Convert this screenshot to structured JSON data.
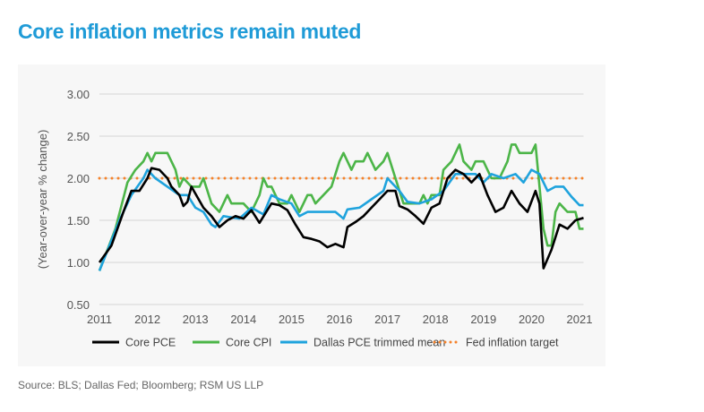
{
  "title": "Core inflation metrics remain muted",
  "source": "Source: BLS; Dallas Fed; Bloomberg; RSM US LLP",
  "chart_data": {
    "type": "line",
    "title": "Core inflation metrics remain muted",
    "ylabel": "(Year-over-year % change)",
    "xlabel": "",
    "ylim": [
      0.5,
      3.0
    ],
    "xlim": [
      "2011-01",
      "2021-02"
    ],
    "yticks": [
      "0.50",
      "1.00",
      "1.50",
      "2.00",
      "2.50",
      "3.00"
    ],
    "xticks": [
      "2011",
      "2012",
      "2013",
      "2014",
      "2015",
      "2016",
      "2017",
      "2018",
      "2019",
      "2020",
      "2021"
    ],
    "grid": "horizontal",
    "legend_placement": "bottom",
    "series": [
      {
        "name": "Core PCE",
        "color": "#000000",
        "style": "solid",
        "points": [
          [
            "2011-01",
            1.0
          ],
          [
            "2011-04",
            1.2
          ],
          [
            "2011-07",
            1.6
          ],
          [
            "2011-09",
            1.85
          ],
          [
            "2011-11",
            1.85
          ],
          [
            "2012-01",
            2.0
          ],
          [
            "2012-02",
            2.12
          ],
          [
            "2012-04",
            2.1
          ],
          [
            "2012-06",
            2.0
          ],
          [
            "2012-07",
            1.9
          ],
          [
            "2012-09",
            1.8
          ],
          [
            "2012-10",
            1.67
          ],
          [
            "2012-11",
            1.72
          ],
          [
            "2012-12",
            1.9
          ],
          [
            "2013-03",
            1.65
          ],
          [
            "2013-05",
            1.55
          ],
          [
            "2013-07",
            1.42
          ],
          [
            "2013-09",
            1.5
          ],
          [
            "2013-11",
            1.55
          ],
          [
            "2014-01",
            1.52
          ],
          [
            "2014-03",
            1.62
          ],
          [
            "2014-05",
            1.47
          ],
          [
            "2014-08",
            1.7
          ],
          [
            "2014-10",
            1.68
          ],
          [
            "2014-12",
            1.62
          ],
          [
            "2015-02",
            1.45
          ],
          [
            "2015-04",
            1.3
          ],
          [
            "2015-06",
            1.28
          ],
          [
            "2015-08",
            1.25
          ],
          [
            "2015-10",
            1.18
          ],
          [
            "2015-12",
            1.22
          ],
          [
            "2016-02",
            1.18
          ],
          [
            "2016-03",
            1.42
          ],
          [
            "2016-05",
            1.48
          ],
          [
            "2016-07",
            1.55
          ],
          [
            "2016-09",
            1.65
          ],
          [
            "2016-11",
            1.75
          ],
          [
            "2017-01",
            1.85
          ],
          [
            "2017-03",
            1.85
          ],
          [
            "2017-04",
            1.67
          ],
          [
            "2017-06",
            1.63
          ],
          [
            "2017-08",
            1.55
          ],
          [
            "2017-10",
            1.46
          ],
          [
            "2017-12",
            1.65
          ],
          [
            "2018-02",
            1.7
          ],
          [
            "2018-04",
            2.0
          ],
          [
            "2018-06",
            2.1
          ],
          [
            "2018-08",
            2.05
          ],
          [
            "2018-10",
            1.95
          ],
          [
            "2018-12",
            2.05
          ],
          [
            "2019-02",
            1.8
          ],
          [
            "2019-04",
            1.6
          ],
          [
            "2019-06",
            1.65
          ],
          [
            "2019-08",
            1.85
          ],
          [
            "2019-10",
            1.7
          ],
          [
            "2019-12",
            1.6
          ],
          [
            "2020-02",
            1.85
          ],
          [
            "2020-03",
            1.7
          ],
          [
            "2020-04",
            0.93
          ],
          [
            "2020-06",
            1.15
          ],
          [
            "2020-08",
            1.45
          ],
          [
            "2020-10",
            1.4
          ],
          [
            "2020-12",
            1.5
          ],
          [
            "2021-02",
            1.53
          ]
        ]
      },
      {
        "name": "Core CPI",
        "color": "#4cb548",
        "style": "solid",
        "points": [
          [
            "2011-01",
            0.9
          ],
          [
            "2011-05",
            1.4
          ],
          [
            "2011-08",
            1.95
          ],
          [
            "2011-10",
            2.1
          ],
          [
            "2011-12",
            2.2
          ],
          [
            "2012-01",
            2.3
          ],
          [
            "2012-02",
            2.2
          ],
          [
            "2012-03",
            2.3
          ],
          [
            "2012-06",
            2.3
          ],
          [
            "2012-08",
            2.1
          ],
          [
            "2012-09",
            1.9
          ],
          [
            "2012-10",
            2.0
          ],
          [
            "2012-12",
            1.9
          ],
          [
            "2013-02",
            1.9
          ],
          [
            "2013-03",
            2.0
          ],
          [
            "2013-05",
            1.7
          ],
          [
            "2013-07",
            1.6
          ],
          [
            "2013-09",
            1.8
          ],
          [
            "2013-10",
            1.7
          ],
          [
            "2014-01",
            1.7
          ],
          [
            "2014-03",
            1.6
          ],
          [
            "2014-05",
            1.8
          ],
          [
            "2014-06",
            2.0
          ],
          [
            "2014-07",
            1.9
          ],
          [
            "2014-08",
            1.9
          ],
          [
            "2014-10",
            1.7
          ],
          [
            "2014-12",
            1.7
          ],
          [
            "2015-01",
            1.8
          ],
          [
            "2015-03",
            1.6
          ],
          [
            "2015-05",
            1.8
          ],
          [
            "2015-06",
            1.8
          ],
          [
            "2015-07",
            1.7
          ],
          [
            "2015-09",
            1.8
          ],
          [
            "2015-11",
            1.9
          ],
          [
            "2016-01",
            2.2
          ],
          [
            "2016-02",
            2.3
          ],
          [
            "2016-04",
            2.1
          ],
          [
            "2016-05",
            2.2
          ],
          [
            "2016-07",
            2.2
          ],
          [
            "2016-08",
            2.3
          ],
          [
            "2016-10",
            2.1
          ],
          [
            "2016-12",
            2.2
          ],
          [
            "2017-01",
            2.3
          ],
          [
            "2017-03",
            2.0
          ],
          [
            "2017-05",
            1.7
          ],
          [
            "2017-09",
            1.7
          ],
          [
            "2017-10",
            1.8
          ],
          [
            "2017-11",
            1.7
          ],
          [
            "2017-12",
            1.8
          ],
          [
            "2018-02",
            1.8
          ],
          [
            "2018-03",
            2.1
          ],
          [
            "2018-05",
            2.2
          ],
          [
            "2018-07",
            2.4
          ],
          [
            "2018-08",
            2.2
          ],
          [
            "2018-10",
            2.1
          ],
          [
            "2018-11",
            2.2
          ],
          [
            "2019-01",
            2.2
          ],
          [
            "2019-03",
            2.0
          ],
          [
            "2019-05",
            2.0
          ],
          [
            "2019-07",
            2.2
          ],
          [
            "2019-08",
            2.4
          ],
          [
            "2019-09",
            2.4
          ],
          [
            "2019-10",
            2.3
          ],
          [
            "2020-01",
            2.3
          ],
          [
            "2020-02",
            2.4
          ],
          [
            "2020-04",
            1.4
          ],
          [
            "2020-05",
            1.2
          ],
          [
            "2020-06",
            1.2
          ],
          [
            "2020-07",
            1.6
          ],
          [
            "2020-08",
            1.7
          ],
          [
            "2020-10",
            1.6
          ],
          [
            "2020-12",
            1.6
          ],
          [
            "2021-01",
            1.4
          ],
          [
            "2021-02",
            1.4
          ]
        ]
      },
      {
        "name": "Dallas PCE trimmed mean",
        "color": "#1fa3dd",
        "style": "solid",
        "points": [
          [
            "2011-01",
            0.9
          ],
          [
            "2011-06",
            1.5
          ],
          [
            "2011-09",
            1.8
          ],
          [
            "2011-12",
            2.0
          ],
          [
            "2012-01",
            2.1
          ],
          [
            "2012-03",
            2.0
          ],
          [
            "2012-06",
            1.9
          ],
          [
            "2012-09",
            1.8
          ],
          [
            "2012-11",
            1.8
          ],
          [
            "2013-01",
            1.65
          ],
          [
            "2013-03",
            1.6
          ],
          [
            "2013-05",
            1.45
          ],
          [
            "2013-06",
            1.42
          ],
          [
            "2013-08",
            1.55
          ],
          [
            "2013-12",
            1.52
          ],
          [
            "2014-03",
            1.65
          ],
          [
            "2014-06",
            1.57
          ],
          [
            "2014-08",
            1.8
          ],
          [
            "2014-10",
            1.75
          ],
          [
            "2015-01",
            1.7
          ],
          [
            "2015-03",
            1.55
          ],
          [
            "2015-05",
            1.6
          ],
          [
            "2015-12",
            1.6
          ],
          [
            "2016-02",
            1.52
          ],
          [
            "2016-03",
            1.63
          ],
          [
            "2016-06",
            1.65
          ],
          [
            "2016-09",
            1.75
          ],
          [
            "2016-12",
            1.85
          ],
          [
            "2017-01",
            2.0
          ],
          [
            "2017-04",
            1.85
          ],
          [
            "2017-06",
            1.72
          ],
          [
            "2017-09",
            1.7
          ],
          [
            "2017-12",
            1.75
          ],
          [
            "2018-03",
            1.85
          ],
          [
            "2018-06",
            2.05
          ],
          [
            "2018-09",
            2.05
          ],
          [
            "2018-11",
            2.05
          ],
          [
            "2019-01",
            1.95
          ],
          [
            "2019-03",
            2.05
          ],
          [
            "2019-06",
            2.0
          ],
          [
            "2019-09",
            2.05
          ],
          [
            "2019-11",
            1.95
          ],
          [
            "2020-01",
            2.1
          ],
          [
            "2020-03",
            2.05
          ],
          [
            "2020-05",
            1.85
          ],
          [
            "2020-07",
            1.9
          ],
          [
            "2020-09",
            1.9
          ],
          [
            "2020-11",
            1.78
          ],
          [
            "2021-01",
            1.68
          ],
          [
            "2021-02",
            1.68
          ]
        ]
      },
      {
        "name": "Fed inflation target",
        "color": "#f5822a",
        "style": "dotted",
        "points": [
          [
            "2011-01",
            2.0
          ],
          [
            "2021-02",
            2.0
          ]
        ]
      }
    ]
  }
}
